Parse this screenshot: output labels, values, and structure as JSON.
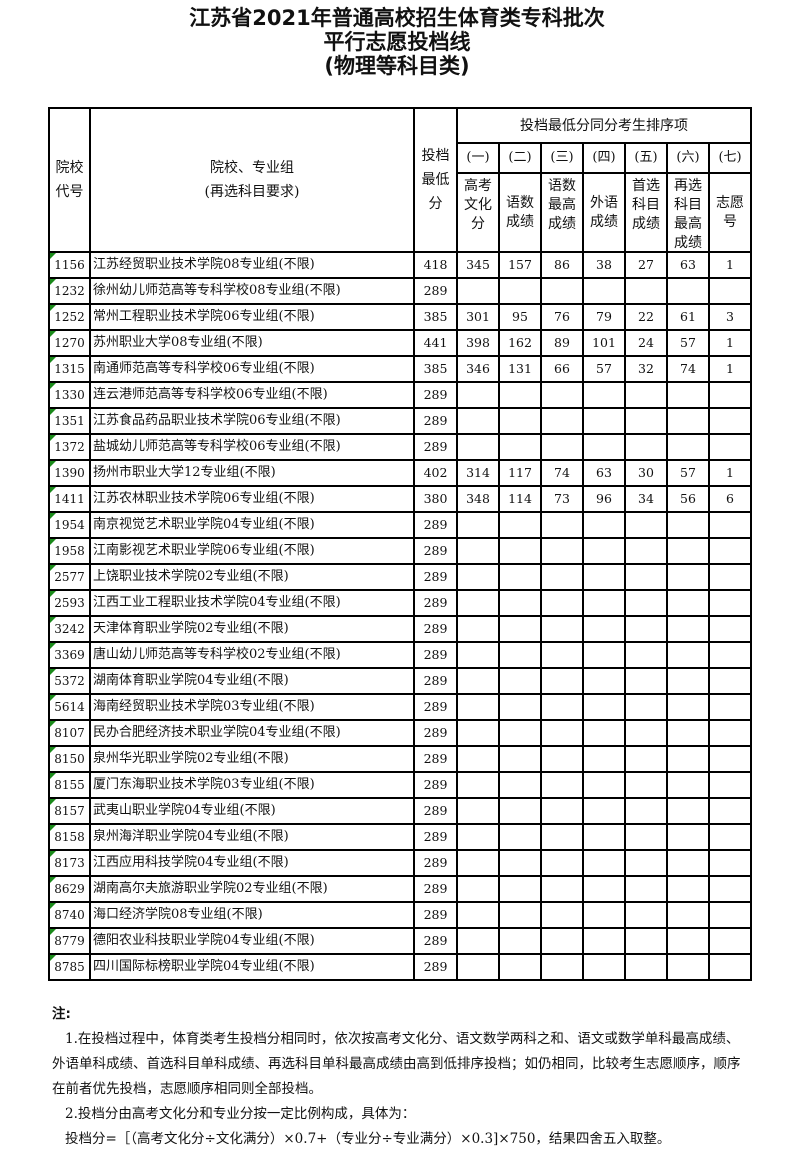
{
  "title": [
    "江苏省2021年普通高校招生体育类专科批次",
    "平行志愿投档线",
    "(物理等科目类)"
  ],
  "headers": {
    "code": "院校代号",
    "name_line1": "院校、专业组",
    "name_line2": "(再选科目要求)",
    "min_score": "投档最低分",
    "ranking_group": "投档最低分同分考生排序项",
    "rank_nums": [
      "(一)",
      "(二)",
      "(三)",
      "(四)",
      "(五)",
      "(六)",
      "(七)"
    ],
    "rank_items": [
      "高考文化分",
      "语数成绩",
      "语数最高成绩",
      "外语成绩",
      "首选科目成绩",
      "再选科目最高成绩",
      "志愿号"
    ]
  },
  "rows": [
    {
      "code": "1156",
      "name": "江苏经贸职业技术学院08专业组(不限)",
      "min": "418",
      "r": [
        "345",
        "157",
        "86",
        "38",
        "27",
        "63",
        "1"
      ]
    },
    {
      "code": "1232",
      "name": "徐州幼儿师范高等专科学校08专业组(不限)",
      "min": "289",
      "r": [
        "",
        "",
        "",
        "",
        "",
        "",
        ""
      ]
    },
    {
      "code": "1252",
      "name": "常州工程职业技术学院06专业组(不限)",
      "min": "385",
      "r": [
        "301",
        "95",
        "76",
        "79",
        "22",
        "61",
        "3"
      ]
    },
    {
      "code": "1270",
      "name": "苏州职业大学08专业组(不限)",
      "min": "441",
      "r": [
        "398",
        "162",
        "89",
        "101",
        "24",
        "57",
        "1"
      ]
    },
    {
      "code": "1315",
      "name": "南通师范高等专科学校06专业组(不限)",
      "min": "385",
      "r": [
        "346",
        "131",
        "66",
        "57",
        "32",
        "74",
        "1"
      ]
    },
    {
      "code": "1330",
      "name": "连云港师范高等专科学校06专业组(不限)",
      "min": "289",
      "r": [
        "",
        "",
        "",
        "",
        "",
        "",
        ""
      ]
    },
    {
      "code": "1351",
      "name": "江苏食品药品职业技术学院06专业组(不限)",
      "min": "289",
      "r": [
        "",
        "",
        "",
        "",
        "",
        "",
        ""
      ]
    },
    {
      "code": "1372",
      "name": "盐城幼儿师范高等专科学校06专业组(不限)",
      "min": "289",
      "r": [
        "",
        "",
        "",
        "",
        "",
        "",
        ""
      ]
    },
    {
      "code": "1390",
      "name": "扬州市职业大学12专业组(不限)",
      "min": "402",
      "r": [
        "314",
        "117",
        "74",
        "63",
        "30",
        "57",
        "1"
      ]
    },
    {
      "code": "1411",
      "name": "江苏农林职业技术学院06专业组(不限)",
      "min": "380",
      "r": [
        "348",
        "114",
        "73",
        "96",
        "34",
        "56",
        "6"
      ]
    },
    {
      "code": "1954",
      "name": "南京视觉艺术职业学院04专业组(不限)",
      "min": "289",
      "r": [
        "",
        "",
        "",
        "",
        "",
        "",
        ""
      ]
    },
    {
      "code": "1958",
      "name": "江南影视艺术职业学院06专业组(不限)",
      "min": "289",
      "r": [
        "",
        "",
        "",
        "",
        "",
        "",
        ""
      ]
    },
    {
      "code": "2577",
      "name": "上饶职业技术学院02专业组(不限)",
      "min": "289",
      "r": [
        "",
        "",
        "",
        "",
        "",
        "",
        ""
      ]
    },
    {
      "code": "2593",
      "name": "江西工业工程职业技术学院04专业组(不限)",
      "min": "289",
      "r": [
        "",
        "",
        "",
        "",
        "",
        "",
        ""
      ]
    },
    {
      "code": "3242",
      "name": "天津体育职业学院02专业组(不限)",
      "min": "289",
      "r": [
        "",
        "",
        "",
        "",
        "",
        "",
        ""
      ]
    },
    {
      "code": "3369",
      "name": "唐山幼儿师范高等专科学校02专业组(不限)",
      "min": "289",
      "r": [
        "",
        "",
        "",
        "",
        "",
        "",
        ""
      ]
    },
    {
      "code": "5372",
      "name": "湖南体育职业学院04专业组(不限)",
      "min": "289",
      "r": [
        "",
        "",
        "",
        "",
        "",
        "",
        ""
      ]
    },
    {
      "code": "5614",
      "name": "海南经贸职业技术学院03专业组(不限)",
      "min": "289",
      "r": [
        "",
        "",
        "",
        "",
        "",
        "",
        ""
      ]
    },
    {
      "code": "8107",
      "name": "民办合肥经济技术职业学院04专业组(不限)",
      "min": "289",
      "r": [
        "",
        "",
        "",
        "",
        "",
        "",
        ""
      ]
    },
    {
      "code": "8150",
      "name": "泉州华光职业学院02专业组(不限)",
      "min": "289",
      "r": [
        "",
        "",
        "",
        "",
        "",
        "",
        ""
      ]
    },
    {
      "code": "8155",
      "name": "厦门东海职业技术学院03专业组(不限)",
      "min": "289",
      "r": [
        "",
        "",
        "",
        "",
        "",
        "",
        ""
      ]
    },
    {
      "code": "8157",
      "name": "武夷山职业学院04专业组(不限)",
      "min": "289",
      "r": [
        "",
        "",
        "",
        "",
        "",
        "",
        ""
      ]
    },
    {
      "code": "8158",
      "name": "泉州海洋职业学院04专业组(不限)",
      "min": "289",
      "r": [
        "",
        "",
        "",
        "",
        "",
        "",
        ""
      ]
    },
    {
      "code": "8173",
      "name": "江西应用科技学院04专业组(不限)",
      "min": "289",
      "r": [
        "",
        "",
        "",
        "",
        "",
        "",
        ""
      ]
    },
    {
      "code": "8629",
      "name": "湖南高尔夫旅游职业学院02专业组(不限)",
      "min": "289",
      "r": [
        "",
        "",
        "",
        "",
        "",
        "",
        ""
      ]
    },
    {
      "code": "8740",
      "name": "海口经济学院08专业组(不限)",
      "min": "289",
      "r": [
        "",
        "",
        "",
        "",
        "",
        "",
        ""
      ]
    },
    {
      "code": "8779",
      "name": "德阳农业科技职业学院04专业组(不限)",
      "min": "289",
      "r": [
        "",
        "",
        "",
        "",
        "",
        "",
        ""
      ]
    },
    {
      "code": "8785",
      "name": "四川国际标榜职业学院04专业组(不限)",
      "min": "289",
      "r": [
        "",
        "",
        "",
        "",
        "",
        "",
        ""
      ]
    }
  ],
  "notes": {
    "heading": "注:",
    "items": [
      "1.在投档过程中，体育类考生投档分相同时，依次按高考文化分、语文数学两科之和、语文或数学单科最高成绩、外语单科成绩、首选科目单科成绩、再选科目单科最高成绩由高到低排序投档；如仍相同，比较考生志愿顺序，顺序在前者优先投档，志愿顺序相同则全部投档。",
      "2.投档分由高考文化分和专业分按一定比例构成，具体为：",
      "投档分=［（高考文化分÷文化满分）×0.7+（专业分÷专业满分）×0.3]×750，结果四舍五入取整。"
    ]
  }
}
